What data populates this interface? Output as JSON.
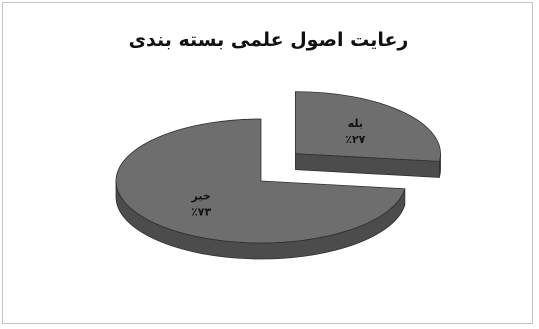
{
  "chart_data": {
    "type": "pie",
    "style": "3d-exploded",
    "title": "رعایت اصول علمی بسته بندی",
    "slices": [
      {
        "label": "بله",
        "value": 27,
        "value_label": "٪۲۷"
      },
      {
        "label": "خیر",
        "value": 73,
        "value_label": "٪۷۳"
      }
    ],
    "colors": {
      "top_face": "#6e6e6e",
      "side_face": "#4c4c4c",
      "edge": "#2f2f2f",
      "label_text": "#111111"
    },
    "legend": "none",
    "grid": false
  }
}
